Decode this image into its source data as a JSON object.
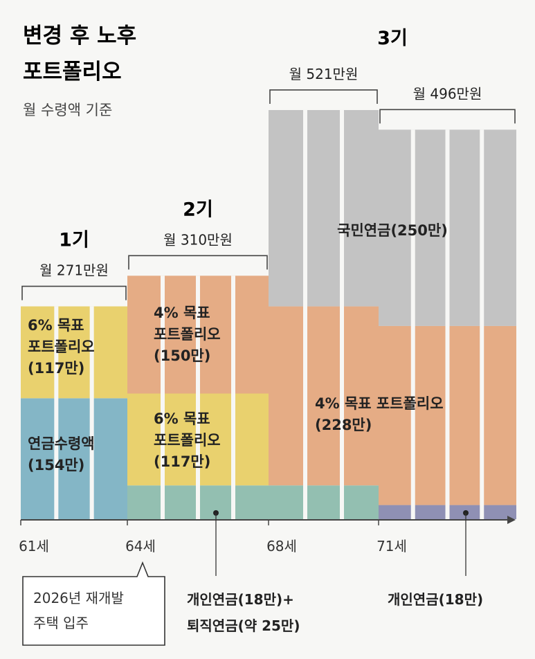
{
  "title_line1": "변경 후 노후",
  "title_line2": "포트폴리오",
  "subtitle": "월 수령액 기준",
  "colors": {
    "blue": "#84b6c6",
    "yellow": "#e9d16e",
    "orange": "#e5ac85",
    "gray": "#c3c3c3",
    "teal": "#93bfb1",
    "purple": "#8f90b4",
    "column_gap": "#f7f7f5"
  },
  "chart_data": {
    "type": "stacked-bar",
    "periods": [
      {
        "name": "1기",
        "total_label": "월 271만원",
        "start_age": 61,
        "end_age": 64,
        "total": 271,
        "segments": [
          {
            "label": [
              "연금수령액",
              "(154만)"
            ],
            "value": 154,
            "color": "blue"
          },
          {
            "label": [
              "6% 목표",
              "포트폴리오",
              "(117만)"
            ],
            "value": 117,
            "color": "yellow"
          }
        ]
      },
      {
        "name": "2기",
        "total_label": "월 310만원",
        "start_age": 64,
        "end_age": 68,
        "total": 310,
        "segments": [
          {
            "label": [],
            "value": 43,
            "color": "teal"
          },
          {
            "label": [
              "6% 목표",
              "포트폴리오",
              "(117만)"
            ],
            "value": 117,
            "color": "yellow"
          },
          {
            "label": [
              "4% 목표",
              "포트폴리오",
              "(150만)"
            ],
            "value": 150,
            "color": "orange"
          }
        ]
      },
      {
        "group": "3기",
        "total_label": "월 521만원",
        "start_age": 68,
        "end_age": 71,
        "total": 521,
        "segments": [
          {
            "label": [],
            "value": 43,
            "color": "teal"
          },
          {
            "label": [
              "4% 목표 포트폴리오",
              "(228만)"
            ],
            "value": 228,
            "color": "orange"
          },
          {
            "label": [
              "국민연금(250만)"
            ],
            "value": 250,
            "color": "gray"
          }
        ]
      },
      {
        "group": "3기",
        "total_label": "월 496만원",
        "start_age": 71,
        "end_age": 75,
        "total": 496,
        "segments": [
          {
            "label": [],
            "value": 18,
            "color": "purple"
          },
          {
            "label": [],
            "value": 228,
            "color": "orange"
          },
          {
            "label": [],
            "value": 250,
            "color": "gray"
          }
        ]
      }
    ],
    "group_title": "3기",
    "x_ticks": [
      "61세",
      "64세",
      "68세",
      "71세"
    ],
    "annotations": [
      {
        "lines": [
          "개인연금(18만)+",
          "퇴직연금(약 25만)"
        ]
      },
      {
        "lines": [
          "개인연금(18만)"
        ]
      }
    ],
    "callout": {
      "lines": [
        "2026년 재개발",
        "주택 입주"
      ],
      "age": 64
    }
  }
}
